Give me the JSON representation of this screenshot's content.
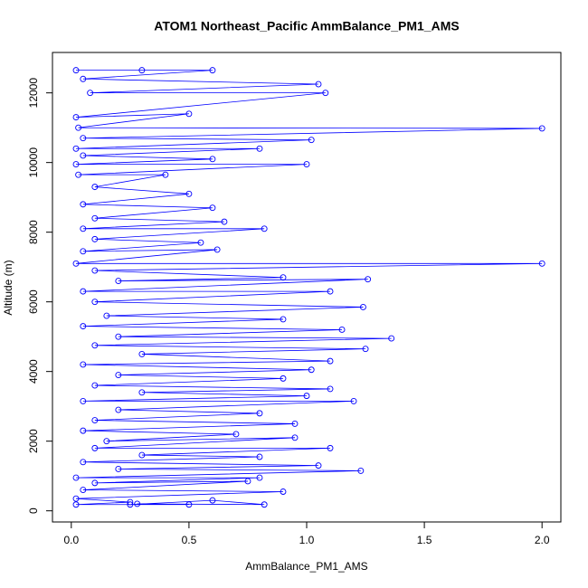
{
  "chart_data": {
    "type": "line",
    "markers": true,
    "title": "ATOM1 Northeast_Pacific AmmBalance_PM1_AMS",
    "x_label": "AmmBalance_PM1_AMS",
    "y_label": "Altitude (m)",
    "color": "#0000ff",
    "xlim": [
      -0.08,
      2.08
    ],
    "ylim": [
      -320,
      13160
    ],
    "xticks": [
      {
        "value": 0,
        "label": "0.0"
      },
      {
        "value": 0.5,
        "label": "0.5"
      },
      {
        "value": 1,
        "label": "1.0"
      },
      {
        "value": 1.5,
        "label": "1.5"
      },
      {
        "value": 2,
        "label": "2.0"
      }
    ],
    "yticks": [
      0,
      2000,
      4000,
      6000,
      8000,
      10000,
      12000
    ],
    "x": [
      0.02,
      0.3,
      0.6,
      0.05,
      1.05,
      0.08,
      1.08,
      0.02,
      0.5,
      0.03,
      2.0,
      0.05,
      1.02,
      0.02,
      0.8,
      0.05,
      0.6,
      0.02,
      1.0,
      0.03,
      0.4,
      0.1,
      0.5,
      0.05,
      0.6,
      0.1,
      0.65,
      0.05,
      0.82,
      0.1,
      0.55,
      0.05,
      0.62,
      0.02,
      2.0,
      0.1,
      0.9,
      0.2,
      1.26,
      0.05,
      1.1,
      0.1,
      1.24,
      0.15,
      0.9,
      0.05,
      1.15,
      0.2,
      1.36,
      0.1,
      1.25,
      0.3,
      1.1,
      0.05,
      1.02,
      0.2,
      0.9,
      0.1,
      1.1,
      0.3,
      1.0,
      0.05,
      1.2,
      0.2,
      0.8,
      0.1,
      0.95,
      0.05,
      0.7,
      0.15,
      0.95,
      0.1,
      1.1,
      0.3,
      0.8,
      0.05,
      1.05,
      0.2,
      1.23,
      0.02,
      0.8,
      0.1,
      0.75,
      0.05,
      0.9,
      0.02,
      0.25,
      0.02,
      0.5,
      0.28,
      0.82,
      0.6,
      0.25
    ],
    "values": [
      12650,
      12650,
      12650,
      12400,
      12250,
      12000,
      12000,
      11300,
      11400,
      11000,
      10980,
      10700,
      10650,
      10400,
      10400,
      10200,
      10100,
      9950,
      9950,
      9650,
      9650,
      9300,
      9100,
      8800,
      8700,
      8400,
      8300,
      8100,
      8100,
      7800,
      7700,
      7450,
      7500,
      7100,
      7100,
      6900,
      6700,
      6600,
      6650,
      6300,
      6300,
      6000,
      5850,
      5600,
      5500,
      5300,
      5200,
      5000,
      4950,
      4750,
      4650,
      4500,
      4300,
      4200,
      4050,
      3900,
      3800,
      3600,
      3500,
      3400,
      3300,
      3150,
      3150,
      2900,
      2800,
      2600,
      2500,
      2300,
      2200,
      2000,
      2100,
      1800,
      1800,
      1600,
      1550,
      1400,
      1300,
      1200,
      1150,
      950,
      950,
      800,
      850,
      600,
      550,
      350,
      250,
      180,
      180,
      200,
      180,
      300,
      180
    ]
  }
}
